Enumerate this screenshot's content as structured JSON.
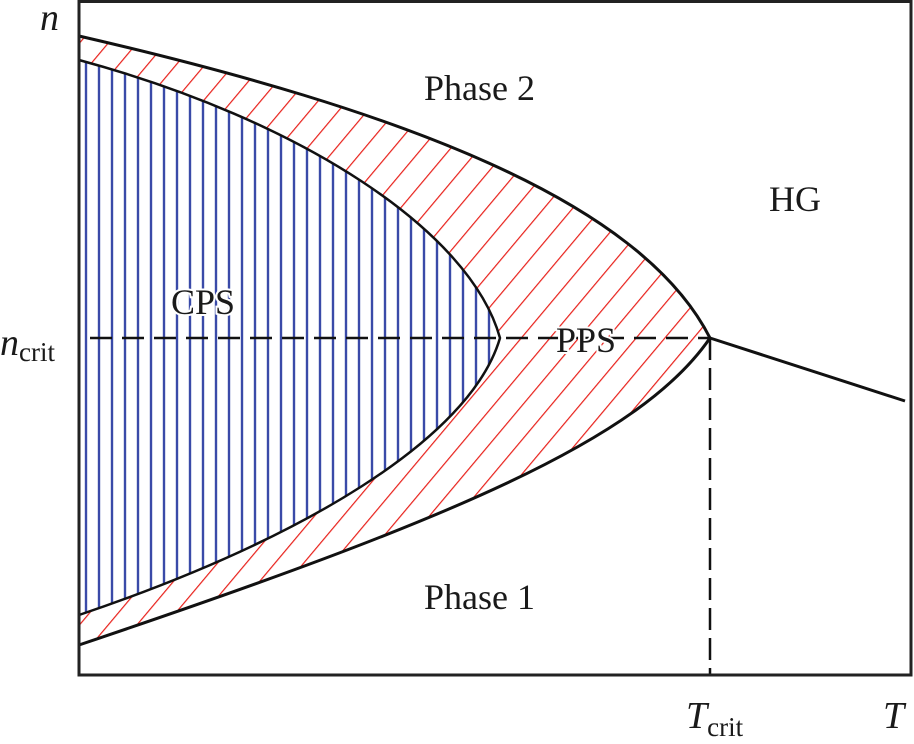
{
  "axes": {
    "y_label": "n",
    "x_label": "T",
    "y_marker": {
      "base": "n",
      "sub": "crit"
    },
    "x_marker": {
      "base": "T",
      "sub": "crit"
    }
  },
  "regions": {
    "phase2": "Phase 2",
    "phase1": "Phase 1",
    "hg": "HG",
    "cps": "CPS",
    "pps": "PPS"
  },
  "colors": {
    "cps_hatch": "#3a4aa8",
    "pps_hatch": "#e8201a",
    "lines": "#111111"
  }
}
